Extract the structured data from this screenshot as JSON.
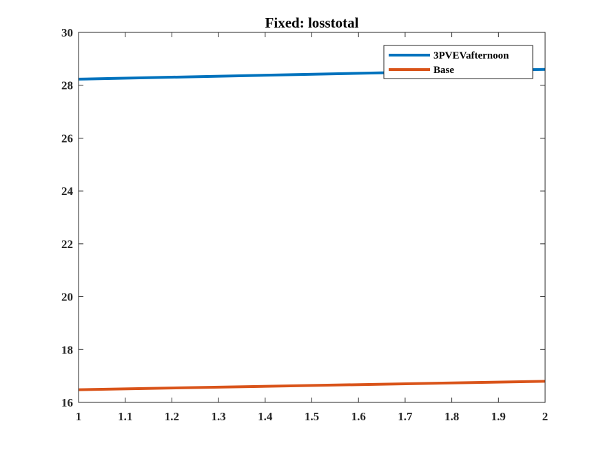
{
  "chart_data": {
    "type": "line",
    "title": "Fixed: losstotal",
    "xlabel": "",
    "ylabel": "",
    "xlim": [
      1,
      2
    ],
    "ylim": [
      16,
      30
    ],
    "xticks": [
      "1",
      "1.1",
      "1.2",
      "1.3",
      "1.4",
      "1.5",
      "1.6",
      "1.7",
      "1.8",
      "1.9",
      "2"
    ],
    "yticks": [
      "16",
      "18",
      "20",
      "22",
      "24",
      "26",
      "28",
      "30"
    ],
    "grid": false,
    "legend_position": "top-right",
    "series": [
      {
        "name": "3PVEVafternoon",
        "color": "#0072BD",
        "x": [
          1,
          2
        ],
        "y": [
          28.23,
          28.6
        ]
      },
      {
        "name": "Base",
        "color": "#D95319",
        "x": [
          1,
          2
        ],
        "y": [
          16.48,
          16.8
        ]
      }
    ]
  }
}
